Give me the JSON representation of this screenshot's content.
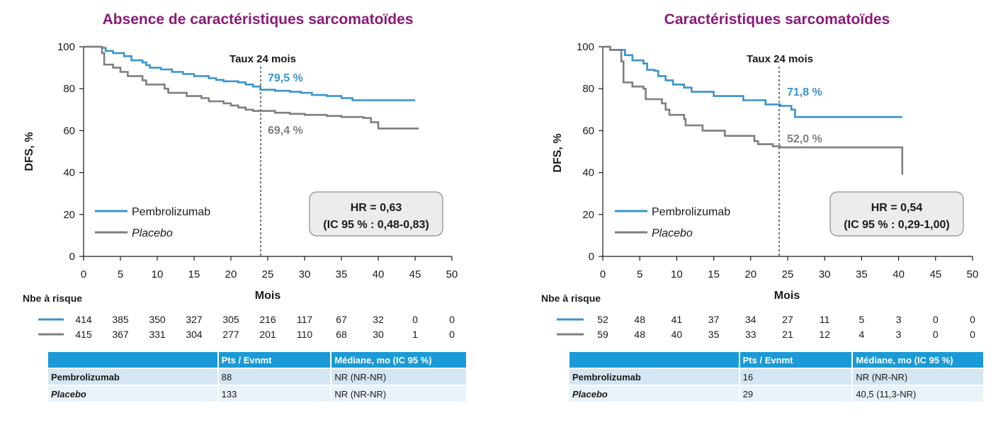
{
  "colors": {
    "title": "#8b1a7a",
    "pembrolizumab": "#3a93cc",
    "placebo": "#7f7f7f",
    "table_header": "#1a9ad6",
    "table_row_a": "#d4e6f1",
    "table_row_b": "#e9f2f8",
    "hr_box_fill": "#ececec"
  },
  "chart_data": [
    {
      "type": "line",
      "title": "Absence de caractéristiques sarcomatoïdes",
      "xlabel": "Mois",
      "ylabel": "DFS, %",
      "xlim": [
        0,
        50
      ],
      "ylim": [
        0,
        100
      ],
      "x_ticks": [
        "0",
        "5",
        "10",
        "15",
        "20",
        "25",
        "30",
        "35",
        "40",
        "45",
        "50"
      ],
      "y_ticks": [
        "0",
        "20",
        "40",
        "60",
        "80",
        "100"
      ],
      "grid": false,
      "landmark": {
        "x": 24,
        "label": "Taux 24 mois"
      },
      "series": [
        {
          "name": "Pembrolizumab",
          "color": "#3a93cc",
          "italic": false,
          "rate_label": "79,5 %",
          "steps": [
            [
              0,
              100
            ],
            [
              2.5,
              99.5
            ],
            [
              3,
              98
            ],
            [
              4,
              97
            ],
            [
              5.5,
              95.5
            ],
            [
              6.5,
              93.5
            ],
            [
              8,
              92.5
            ],
            [
              8.5,
              91.2
            ],
            [
              9,
              90
            ],
            [
              10.5,
              89.2
            ],
            [
              12,
              88
            ],
            [
              13.5,
              87
            ],
            [
              15,
              86
            ],
            [
              17,
              85
            ],
            [
              18,
              84.2
            ],
            [
              19,
              83.5
            ],
            [
              21,
              83
            ],
            [
              22,
              82
            ],
            [
              23,
              81
            ],
            [
              24,
              79.5
            ],
            [
              26,
              79
            ],
            [
              28,
              78.5
            ],
            [
              29.5,
              78
            ],
            [
              31,
              77
            ],
            [
              33,
              76.5
            ],
            [
              35,
              75.5
            ],
            [
              36.5,
              74.5
            ],
            [
              45,
              74.5
            ]
          ]
        },
        {
          "name": "Placebo",
          "color": "#7f7f7f",
          "italic": true,
          "rate_label": "69,4 %",
          "steps": [
            [
              0,
              100
            ],
            [
              2.5,
              97
            ],
            [
              2.8,
              91.5
            ],
            [
              4,
              90
            ],
            [
              5,
              88
            ],
            [
              6,
              86
            ],
            [
              8,
              84
            ],
            [
              8.5,
              82
            ],
            [
              11,
              80
            ],
            [
              11.5,
              78
            ],
            [
              14,
              76.5
            ],
            [
              16,
              75.5
            ],
            [
              17,
              74
            ],
            [
              19,
              73
            ],
            [
              20,
              72
            ],
            [
              21,
              71
            ],
            [
              22,
              70
            ],
            [
              23,
              69.4
            ],
            [
              26,
              68.5
            ],
            [
              28,
              68
            ],
            [
              30,
              67.5
            ],
            [
              33,
              67
            ],
            [
              35,
              66.5
            ],
            [
              38,
              66
            ],
            [
              39,
              64
            ],
            [
              40,
              61
            ],
            [
              45.5,
              61
            ]
          ]
        }
      ],
      "hr_box": {
        "line1": "HR = 0,63",
        "line2": "(IC 95 % : 0,48-0,83)"
      },
      "risk_table": {
        "title": "Nbe à risque",
        "rows": [
          [
            "414",
            "385",
            "350",
            "327",
            "305",
            "216",
            "117",
            "67",
            "32",
            "0",
            "0"
          ],
          [
            "415",
            "367",
            "331",
            "304",
            "277",
            "201",
            "110",
            "68",
            "30",
            "1",
            "0"
          ]
        ]
      },
      "summary_table": {
        "headers": [
          "",
          "Pts / Evnmt",
          "Médiane, mo (IC 95 %)"
        ],
        "rows": [
          [
            "Pembrolizumab",
            "88",
            "NR (NR-NR)"
          ],
          [
            "Placebo",
            "133",
            "NR (NR-NR)"
          ]
        ]
      }
    },
    {
      "type": "line",
      "title": "Caractéristiques sarcomatoïdes",
      "xlabel": "Mois",
      "ylabel": "DFS, %",
      "xlim": [
        0,
        50
      ],
      "ylim": [
        0,
        100
      ],
      "x_ticks": [
        "0",
        "5",
        "10",
        "15",
        "20",
        "25",
        "30",
        "35",
        "40",
        "45",
        "50"
      ],
      "y_ticks": [
        "0",
        "20",
        "40",
        "60",
        "80",
        "100"
      ],
      "grid": false,
      "landmark": {
        "x": 24,
        "label": "Taux 24 mois"
      },
      "series": [
        {
          "name": "Pembrolizumab",
          "color": "#3a93cc",
          "italic": false,
          "rate_label": "71,8 %",
          "steps": [
            [
              0,
              100
            ],
            [
              1,
              98.5
            ],
            [
              3,
              96
            ],
            [
              4,
              93.5
            ],
            [
              5.5,
              92
            ],
            [
              6,
              89
            ],
            [
              7,
              88.5
            ],
            [
              7.5,
              86
            ],
            [
              8.5,
              84
            ],
            [
              9.5,
              82
            ],
            [
              11,
              80.5
            ],
            [
              12,
              78.5
            ],
            [
              15,
              76.5
            ],
            [
              19,
              74.5
            ],
            [
              22,
              72.5
            ],
            [
              24,
              71.8
            ],
            [
              25.5,
              70
            ],
            [
              26,
              66.5
            ],
            [
              40.5,
              66.5
            ]
          ]
        },
        {
          "name": "Placebo",
          "color": "#7f7f7f",
          "italic": true,
          "rate_label": "52,0 %",
          "steps": [
            [
              0,
              100
            ],
            [
              1,
              98.5
            ],
            [
              2.5,
              93
            ],
            [
              2.8,
              83
            ],
            [
              4,
              81
            ],
            [
              5.5,
              80
            ],
            [
              5.8,
              75
            ],
            [
              8,
              73
            ],
            [
              8.5,
              70
            ],
            [
              9,
              67.5
            ],
            [
              11,
              65.5
            ],
            [
              11.2,
              62.5
            ],
            [
              13.5,
              60
            ],
            [
              16.5,
              57.5
            ],
            [
              20.5,
              55
            ],
            [
              21,
              53.5
            ],
            [
              23,
              52.5
            ],
            [
              24,
              52
            ],
            [
              40.5,
              52
            ],
            [
              40.5,
              39
            ]
          ]
        }
      ],
      "hr_box": {
        "line1": "HR = 0,54",
        "line2": "(IC 95 % : 0,29-1,00)"
      },
      "risk_table": {
        "title": "Nbe à risque",
        "rows": [
          [
            "52",
            "48",
            "41",
            "37",
            "34",
            "27",
            "11",
            "5",
            "3",
            "0",
            "0"
          ],
          [
            "59",
            "48",
            "40",
            "35",
            "33",
            "21",
            "12",
            "4",
            "3",
            "0",
            "0"
          ]
        ]
      },
      "summary_table": {
        "headers": [
          "",
          "Pts / Evnmt",
          "Médiane, mo (IC 95 %)"
        ],
        "rows": [
          [
            "Pembrolizumab",
            "16",
            "NR (NR-NR)"
          ],
          [
            "Placebo",
            "29",
            "40,5 (11,3-NR)"
          ]
        ]
      }
    }
  ]
}
